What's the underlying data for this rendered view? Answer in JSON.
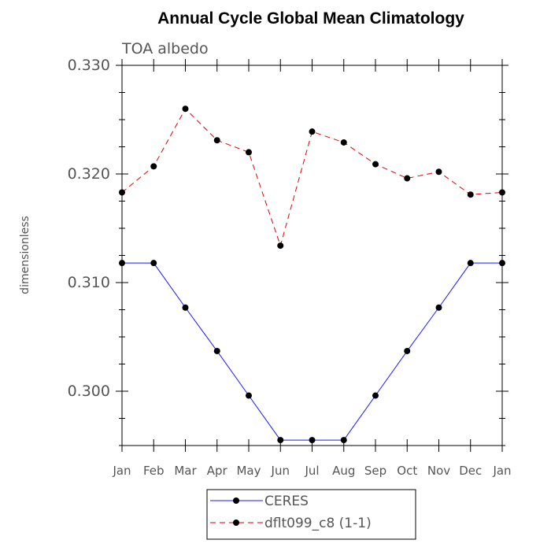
{
  "chart_data": {
    "type": "line",
    "title": "Annual Cycle Global Mean Climatology",
    "subtitle": "TOA albedo",
    "xlabel": "",
    "ylabel": "dimensionless",
    "categories": [
      "Jan",
      "Feb",
      "Mar",
      "Apr",
      "May",
      "Jun",
      "Jul",
      "Aug",
      "Sep",
      "Oct",
      "Nov",
      "Dec",
      "Jan"
    ],
    "ylim": [
      0.295,
      0.33
    ],
    "yticks": [
      {
        "value": 0.3,
        "label": "0.300"
      },
      {
        "value": 0.31,
        "label": "0.310"
      },
      {
        "value": 0.32,
        "label": "0.320"
      },
      {
        "value": 0.33,
        "label": "0.330"
      }
    ],
    "series": [
      {
        "name": "CERES",
        "color": "#1a1aff",
        "dash": "solid",
        "values": [
          0.3118,
          0.3118,
          0.3077,
          0.3037,
          0.2996,
          0.2955,
          0.2955,
          0.2955,
          0.2996,
          0.3037,
          0.3077,
          0.3118,
          0.3118
        ]
      },
      {
        "name": "dflt099_c8 (1-1)",
        "color": "#e00000",
        "dash": "dashed",
        "values": [
          0.3183,
          0.3207,
          0.326,
          0.3231,
          0.322,
          0.3134,
          0.3239,
          0.3229,
          0.3209,
          0.3196,
          0.3202,
          0.3181,
          0.3183
        ]
      }
    ],
    "legend": "bottom-center",
    "grid": false
  }
}
